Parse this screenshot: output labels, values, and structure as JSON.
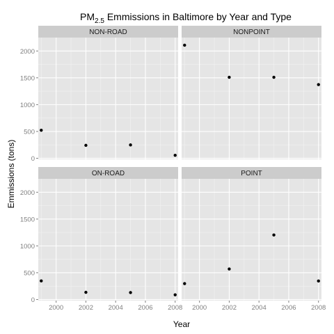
{
  "chart_data": {
    "type": "scatter",
    "title": {
      "prefix": "PM",
      "subscript": "2.5",
      "suffix": " Emmissions in Baltimore by Year and Type"
    },
    "xlabel": "Year",
    "ylabel": "Emmissions (tons)",
    "xlim": [
      1998.8,
      2008.2
    ],
    "ylim": [
      -20,
      2250
    ],
    "xticks": [
      2000,
      2002,
      2004,
      2006,
      2008
    ],
    "xtick_labels": [
      "2000",
      "2002",
      "2004",
      "2006",
      "2008"
    ],
    "yticks": [
      0,
      500,
      1000,
      1500,
      2000
    ],
    "ytick_labels": [
      "0",
      "500",
      "1000",
      "1500",
      "2000"
    ],
    "grid": true,
    "panel_background": "#e5e5e5",
    "strip_background": "#cccccc",
    "grid_color": "#ffffff",
    "point_color": "#000000",
    "facets": [
      {
        "label": "NON-ROAD",
        "points": [
          {
            "x": 1999,
            "y": 522
          },
          {
            "x": 2002,
            "y": 241
          },
          {
            "x": 2005,
            "y": 249
          },
          {
            "x": 2008,
            "y": 56
          }
        ]
      },
      {
        "label": "NONPOINT",
        "points": [
          {
            "x": 1999,
            "y": 2108
          },
          {
            "x": 2002,
            "y": 1510
          },
          {
            "x": 2005,
            "y": 1510
          },
          {
            "x": 2008,
            "y": 1373
          }
        ]
      },
      {
        "label": "ON-ROAD",
        "points": [
          {
            "x": 1999,
            "y": 347
          },
          {
            "x": 2002,
            "y": 134
          },
          {
            "x": 2005,
            "y": 130
          },
          {
            "x": 2008,
            "y": 88
          }
        ]
      },
      {
        "label": "POINT",
        "points": [
          {
            "x": 1999,
            "y": 297
          },
          {
            "x": 2002,
            "y": 570
          },
          {
            "x": 2005,
            "y": 1203
          },
          {
            "x": 2008,
            "y": 345
          }
        ]
      }
    ]
  }
}
